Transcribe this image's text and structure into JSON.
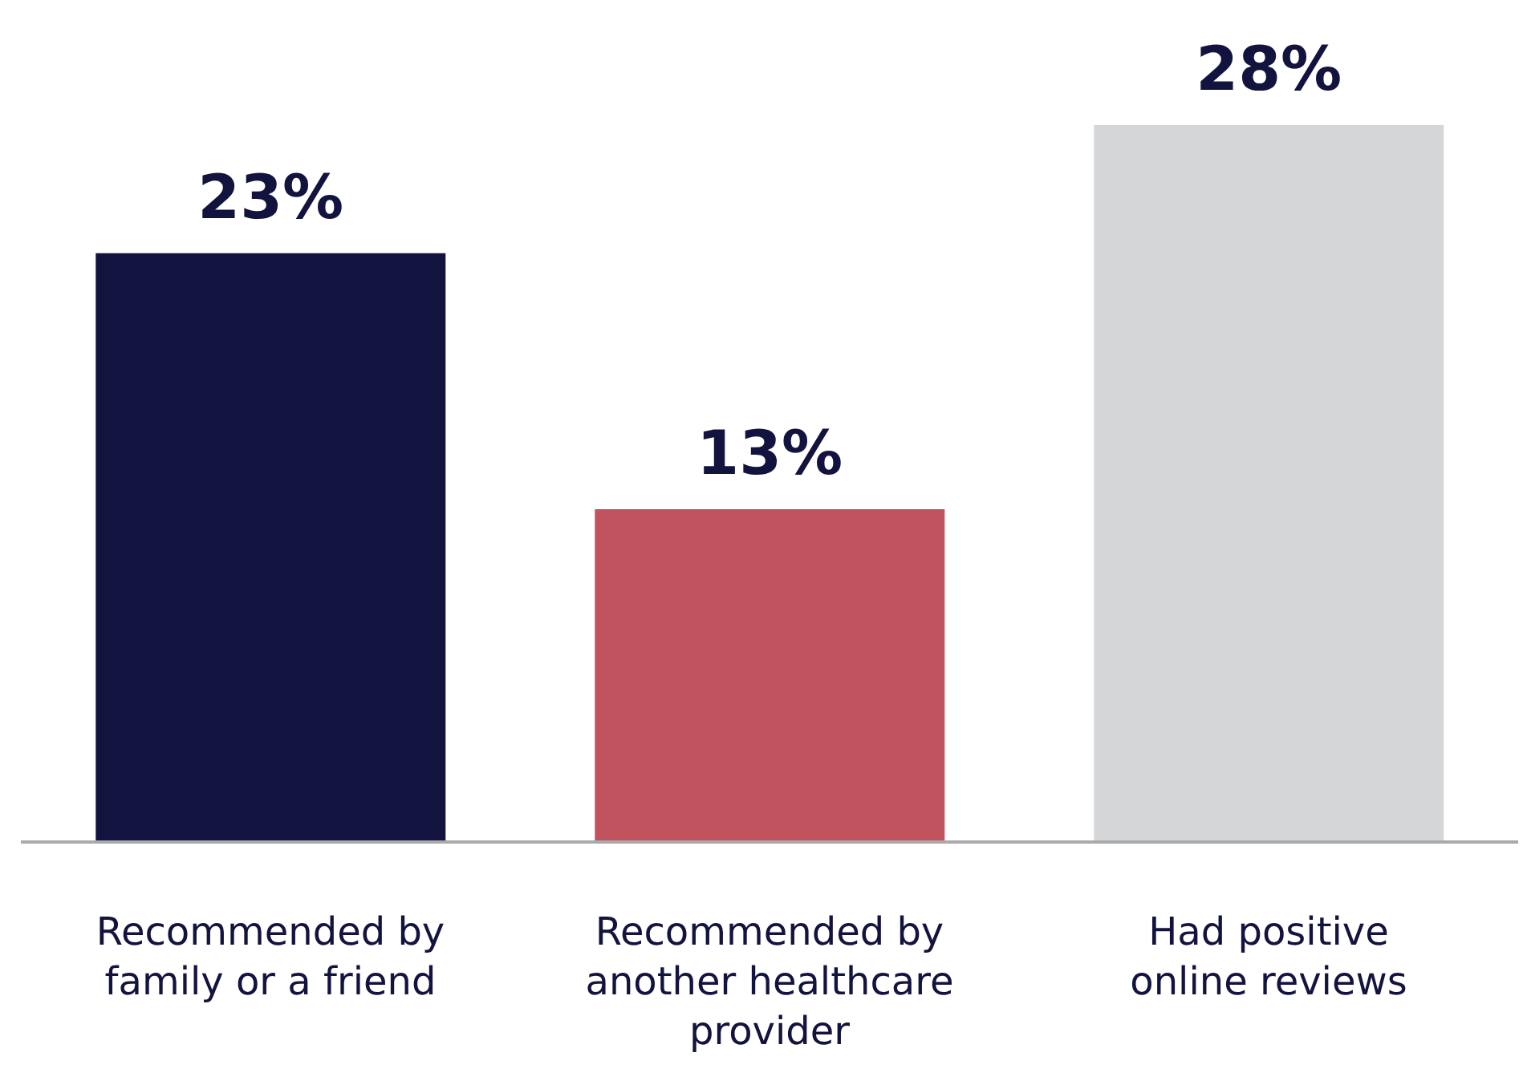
{
  "chart_data": {
    "type": "bar",
    "categories": [
      "Recommended by family or a friend",
      "Recommended by another healthcare provider",
      "Had positive online reviews"
    ],
    "values": [
      23,
      13,
      28
    ],
    "colors": [
      "#13133f",
      "#c0535e",
      "#d5d6d8"
    ],
    "value_labels": [
      "23%",
      "13%",
      "28%"
    ]
  }
}
